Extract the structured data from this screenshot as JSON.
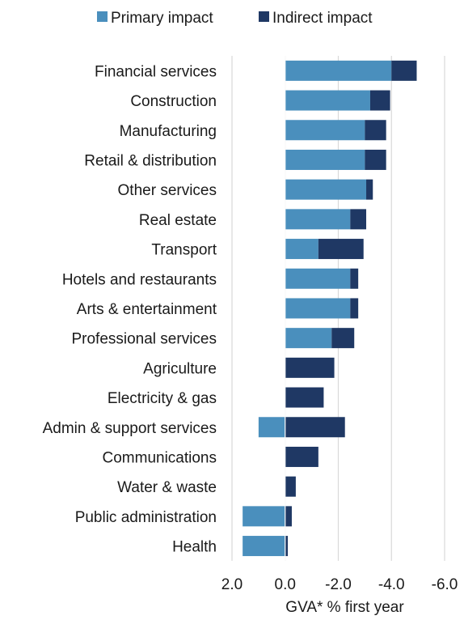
{
  "chart_data": {
    "type": "bar",
    "orientation": "horizontal",
    "stacked": true,
    "categories": [
      "Financial services",
      "Construction",
      "Manufacturing",
      "Retail & distribution",
      "Other services",
      "Real estate",
      "Transport",
      "Hotels and restaurants",
      "Arts & entertainment",
      "Professional services",
      "Agriculture",
      "Electricity & gas",
      "Admin & support services",
      "Communications",
      "Water & waste",
      "Public administration",
      "Health"
    ],
    "series": [
      {
        "name": "Primary impact",
        "color": "#4a8fbd",
        "values": [
          -4.0,
          -3.2,
          -3.0,
          -3.0,
          -3.05,
          -2.45,
          -1.25,
          -2.45,
          -2.45,
          -1.75,
          0,
          0,
          1.0,
          0,
          0,
          1.6,
          1.6
        ]
      },
      {
        "name": "Indirect impact",
        "color": "#1f3864",
        "values": [
          -0.95,
          -0.75,
          -0.8,
          -0.8,
          -0.25,
          -0.6,
          -1.7,
          -0.3,
          -0.3,
          -0.85,
          -1.85,
          -1.45,
          -2.25,
          -1.25,
          -0.4,
          -0.25,
          -0.1
        ]
      }
    ],
    "xlabel": "GVA* % first year",
    "ylabel": "",
    "xlim": [
      2.0,
      -6.0
    ],
    "x_ticks": [
      "2.0",
      "0.0",
      "-2.0",
      "-4.0",
      "-6.0"
    ],
    "x_tick_values": [
      2.0,
      0.0,
      -2.0,
      -4.0,
      -6.0
    ],
    "grid": "vertical",
    "legend": "top"
  }
}
